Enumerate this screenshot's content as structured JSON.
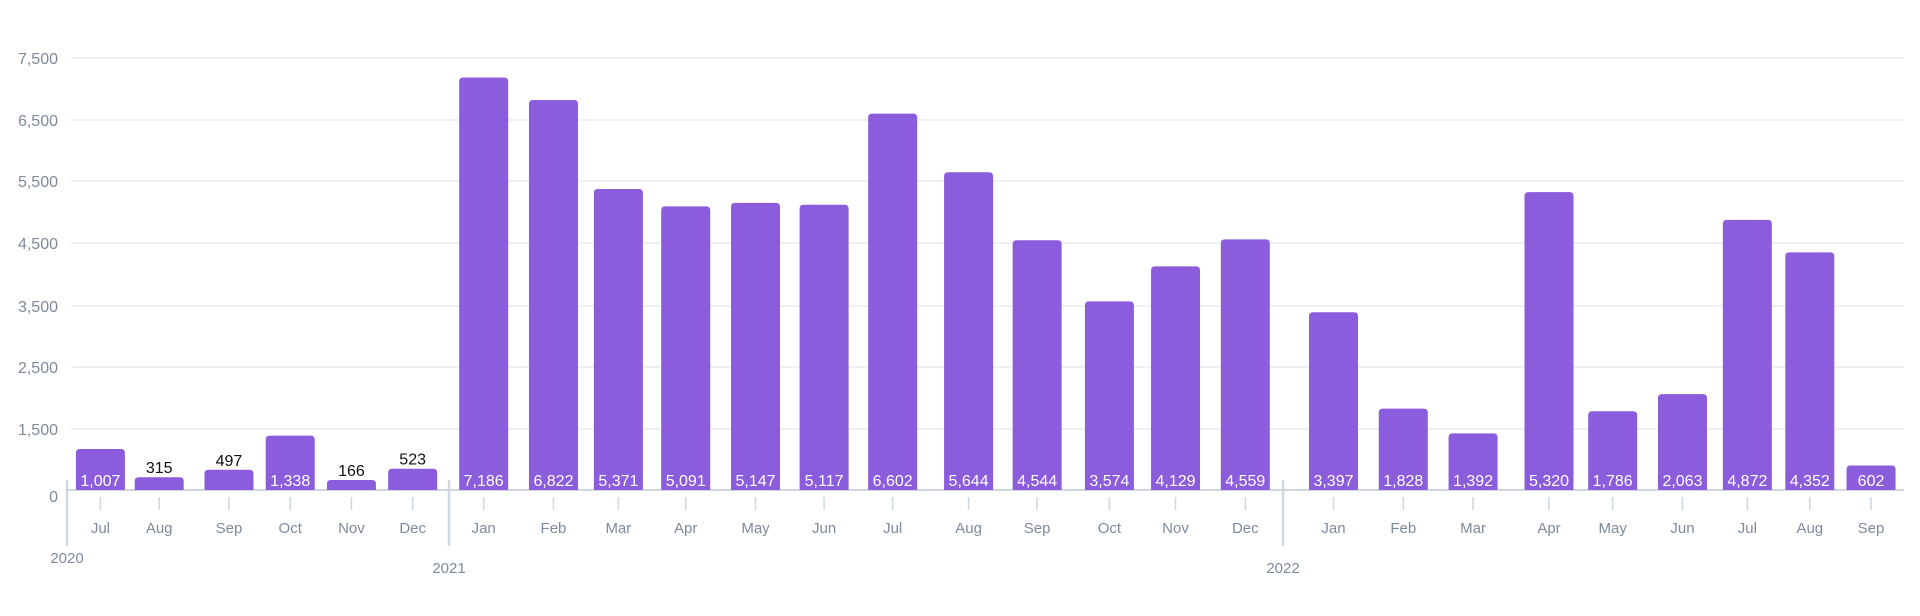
{
  "chart_data": {
    "type": "bar",
    "title": "",
    "xlabel": "",
    "ylabel": "",
    "bar_color": "#8b5cdb",
    "grid": true,
    "y_ticks": [
      "0",
      "1,500",
      "2,500",
      "3,500",
      "4,500",
      "5,500",
      "6,500",
      "7,500"
    ],
    "y_tick_values": [
      0,
      1500,
      2500,
      3500,
      4500,
      5500,
      6500,
      7500
    ],
    "years": [
      {
        "label": "2020",
        "start_index": 0
      },
      {
        "label": "2021",
        "start_index": 6
      },
      {
        "label": "2022",
        "start_index": 18
      }
    ],
    "categories": [
      "Jul",
      "Aug",
      "Sep",
      "Oct",
      "Nov",
      "Dec",
      "Jan",
      "Feb",
      "Mar",
      "Apr",
      "May",
      "Jun",
      "Jul",
      "Aug",
      "Sep",
      "Oct",
      "Nov",
      "Dec",
      "Jan",
      "Feb",
      "Mar",
      "Apr",
      "May",
      "Jun",
      "Jul",
      "Aug",
      "Sep"
    ],
    "values": [
      1007,
      315,
      497,
      1338,
      166,
      523,
      7186,
      6822,
      5371,
      5091,
      5147,
      5117,
      6602,
      5644,
      4544,
      3574,
      4129,
      4559,
      3397,
      1828,
      1392,
      5320,
      1786,
      2063,
      4872,
      4352,
      602
    ],
    "value_labels": [
      "1,007",
      "315",
      "497",
      "1,338",
      "166",
      "523",
      "7,186",
      "6,822",
      "5,371",
      "5,091",
      "5,147",
      "5,117",
      "6,602",
      "5,644",
      "4,544",
      "3,574",
      "4,129",
      "4,559",
      "3,397",
      "1,828",
      "1,392",
      "5,320",
      "1,786",
      "2,063",
      "4,872",
      "4,352",
      "602"
    ]
  }
}
